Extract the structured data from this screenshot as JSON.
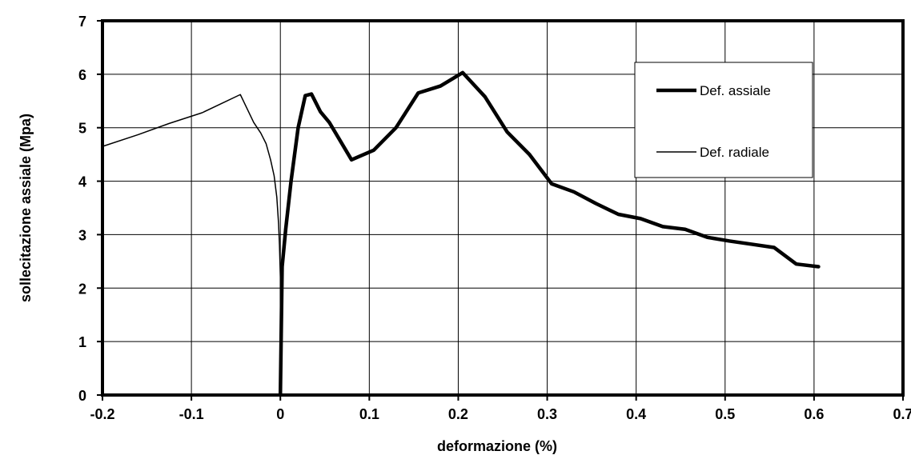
{
  "chart_data": {
    "type": "line",
    "title": "",
    "xlabel": "deformazione (%)",
    "ylabel": "sollecitazione assiale (Mpa)",
    "xlim": [
      -0.2,
      0.7
    ],
    "ylim": [
      0,
      7
    ],
    "xticks": [
      -0.2,
      -0.1,
      0,
      0.1,
      0.2,
      0.3,
      0.4,
      0.5,
      0.6,
      0.7
    ],
    "xtick_labels": [
      "-0.2",
      "-0.1",
      "0",
      "0.1",
      "0.2",
      "0.3",
      "0.4",
      "0.5",
      "0.6",
      "0.7"
    ],
    "yticks": [
      0,
      1,
      2,
      3,
      4,
      5,
      6,
      7
    ],
    "ytick_labels": [
      "0",
      "1",
      "2",
      "3",
      "4",
      "5",
      "6",
      "7"
    ],
    "grid": true,
    "legend_position": "top-right",
    "series": [
      {
        "name": "Def. assiale",
        "color": "#000000",
        "weight": "thick",
        "x": [
          0,
          0.002,
          0.006,
          0.012,
          0.02,
          0.028,
          0.035,
          0.045,
          0.055,
          0.08,
          0.105,
          0.13,
          0.155,
          0.18,
          0.205,
          0.23,
          0.255,
          0.28,
          0.305,
          0.33,
          0.355,
          0.38,
          0.405,
          0.43,
          0.455,
          0.48,
          0.505,
          0.53,
          0.555,
          0.58,
          0.605
        ],
        "y": [
          0,
          2.4,
          3.1,
          4.0,
          5.0,
          5.6,
          5.63,
          5.3,
          5.1,
          4.4,
          4.58,
          5.0,
          5.65,
          5.78,
          6.03,
          5.58,
          4.92,
          4.5,
          3.95,
          3.8,
          3.58,
          3.38,
          3.3,
          3.15,
          3.1,
          2.95,
          2.88,
          2.82,
          2.76,
          2.45,
          2.4
        ]
      },
      {
        "name": "Def. radiale",
        "color": "#000000",
        "weight": "thin",
        "x": [
          0,
          0,
          -0.001,
          -0.002,
          -0.004,
          -0.007,
          -0.011,
          -0.016,
          -0.022,
          -0.03,
          -0.045,
          -0.088,
          -0.125,
          -0.16,
          -0.2
        ],
        "y": [
          0,
          2.2,
          2.8,
          3.2,
          3.7,
          4.1,
          4.4,
          4.7,
          4.9,
          5.1,
          5.62,
          5.28,
          5.08,
          4.87,
          4.65
        ]
      }
    ]
  }
}
